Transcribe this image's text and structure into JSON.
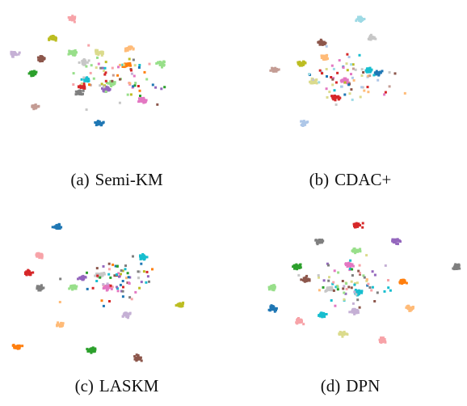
{
  "chart_data": [
    {
      "type": "scatter",
      "caption_label": "(a)",
      "caption_method": "Semi-KM",
      "clusters": [
        {
          "x": 0.3,
          "y": 0.08,
          "color": "#f7a3a8"
        },
        {
          "x": 0.21,
          "y": 0.2,
          "color": "#bcbd22"
        },
        {
          "x": 0.04,
          "y": 0.3,
          "color": "#c5b0d5"
        },
        {
          "x": 0.16,
          "y": 0.33,
          "color": "#8c564b"
        },
        {
          "x": 0.12,
          "y": 0.42,
          "color": "#2ca02c"
        },
        {
          "x": 0.3,
          "y": 0.29,
          "color": "#98df8a"
        },
        {
          "x": 0.42,
          "y": 0.29,
          "color": "#dbdb8d"
        },
        {
          "x": 0.55,
          "y": 0.27,
          "color": "#ffbb78"
        },
        {
          "x": 0.54,
          "y": 0.37,
          "color": "#ff7f0e"
        },
        {
          "x": 0.69,
          "y": 0.36,
          "color": "#98df8a"
        },
        {
          "x": 0.61,
          "y": 0.59,
          "color": "#e377c2"
        },
        {
          "x": 0.13,
          "y": 0.63,
          "color": "#c49c94"
        },
        {
          "x": 0.42,
          "y": 0.73,
          "color": "#1f77b4"
        },
        {
          "x": 0.36,
          "y": 0.46,
          "color": "#17becf"
        },
        {
          "x": 0.34,
          "y": 0.5,
          "color": "#d62728"
        },
        {
          "x": 0.45,
          "y": 0.52,
          "color": "#9467bd"
        },
        {
          "x": 0.47,
          "y": 0.48,
          "color": "#98df8a"
        },
        {
          "x": 0.33,
          "y": 0.54,
          "color": "#7f7f7f"
        },
        {
          "x": 0.35,
          "y": 0.35,
          "color": "#c7c7c7"
        }
      ]
    },
    {
      "type": "scatter",
      "caption_label": "(b)",
      "caption_method": "CDAC+",
      "clusters": [
        {
          "x": 0.54,
          "y": 0.08,
          "color": "#9edae5"
        },
        {
          "x": 0.37,
          "y": 0.23,
          "color": "#8c564b"
        },
        {
          "x": 0.28,
          "y": 0.36,
          "color": "#bcbd22"
        },
        {
          "x": 0.33,
          "y": 0.47,
          "color": "#dbdb8d"
        },
        {
          "x": 0.62,
          "y": 0.42,
          "color": "#1f77b4"
        },
        {
          "x": 0.58,
          "y": 0.4,
          "color": "#17becf"
        },
        {
          "x": 0.43,
          "y": 0.57,
          "color": "#d62728"
        },
        {
          "x": 0.59,
          "y": 0.2,
          "color": "#c7c7c7"
        },
        {
          "x": 0.47,
          "y": 0.47,
          "color": "#e377c2"
        },
        {
          "x": 0.29,
          "y": 0.73,
          "color": "#aec7e8"
        },
        {
          "x": 0.16,
          "y": 0.4,
          "color": "#c49c94"
        },
        {
          "x": 0.38,
          "y": 0.32,
          "color": "#ffbb78"
        }
      ]
    },
    {
      "type": "scatter",
      "caption_label": "(c)",
      "caption_method": "LASKM",
      "clusters": [
        {
          "x": 0.23,
          "y": 0.11,
          "color": "#1f77b4"
        },
        {
          "x": 0.15,
          "y": 0.29,
          "color": "#f7a3a8"
        },
        {
          "x": 0.1,
          "y": 0.4,
          "color": "#d62728"
        },
        {
          "x": 0.15,
          "y": 0.49,
          "color": "#7f7f7f"
        },
        {
          "x": 0.24,
          "y": 0.72,
          "color": "#ffbb78"
        },
        {
          "x": 0.05,
          "y": 0.86,
          "color": "#ff7f0e"
        },
        {
          "x": 0.38,
          "y": 0.88,
          "color": "#2ca02c"
        },
        {
          "x": 0.59,
          "y": 0.93,
          "color": "#8c564b"
        },
        {
          "x": 0.54,
          "y": 0.66,
          "color": "#c5b0d5"
        },
        {
          "x": 0.78,
          "y": 0.6,
          "color": "#bcbd22"
        },
        {
          "x": 0.42,
          "y": 0.41,
          "color": "#c7c7c7"
        },
        {
          "x": 0.45,
          "y": 0.49,
          "color": "#e377c2"
        },
        {
          "x": 0.61,
          "y": 0.3,
          "color": "#17becf"
        },
        {
          "x": 0.3,
          "y": 0.49,
          "color": "#98df8a"
        },
        {
          "x": 0.34,
          "y": 0.43,
          "color": "#9467bd"
        }
      ]
    },
    {
      "type": "scatter",
      "caption_label": "(d)",
      "caption_method": "DPN",
      "clusters": [
        {
          "x": 0.53,
          "y": 0.1,
          "color": "#d62728"
        },
        {
          "x": 0.7,
          "y": 0.2,
          "color": "#9467bd"
        },
        {
          "x": 0.36,
          "y": 0.2,
          "color": "#7f7f7f"
        },
        {
          "x": 0.52,
          "y": 0.26,
          "color": "#98df8a"
        },
        {
          "x": 0.26,
          "y": 0.36,
          "color": "#2ca02c"
        },
        {
          "x": 0.3,
          "y": 0.44,
          "color": "#8c564b"
        },
        {
          "x": 0.49,
          "y": 0.35,
          "color": "#e377c2"
        },
        {
          "x": 0.4,
          "y": 0.5,
          "color": "#c7c7c7"
        },
        {
          "x": 0.53,
          "y": 0.52,
          "color": "#17becf"
        },
        {
          "x": 0.15,
          "y": 0.49,
          "color": "#98df8a"
        },
        {
          "x": 0.73,
          "y": 0.45,
          "color": "#ff7f0e"
        },
        {
          "x": 0.97,
          "y": 0.36,
          "color": "#7f7f7f"
        },
        {
          "x": 0.15,
          "y": 0.62,
          "color": "#1f77b4"
        },
        {
          "x": 0.76,
          "y": 0.62,
          "color": "#ffbb78"
        },
        {
          "x": 0.37,
          "y": 0.66,
          "color": "#17becf"
        },
        {
          "x": 0.51,
          "y": 0.64,
          "color": "#c5b0d5"
        },
        {
          "x": 0.27,
          "y": 0.7,
          "color": "#f7a3a8"
        },
        {
          "x": 0.46,
          "y": 0.78,
          "color": "#dbdb8d"
        },
        {
          "x": 0.64,
          "y": 0.82,
          "color": "#f7a3a8"
        }
      ]
    }
  ]
}
